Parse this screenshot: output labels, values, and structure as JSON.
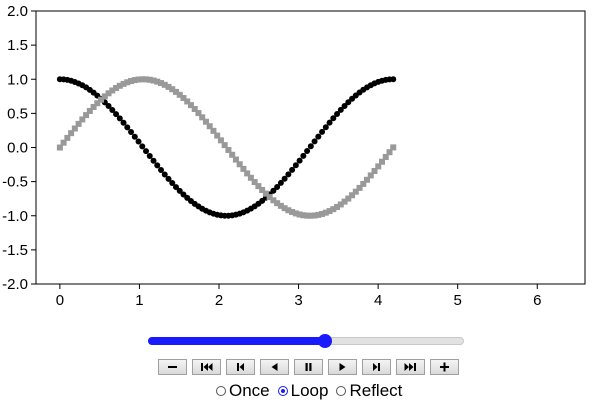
{
  "chart_data": {
    "type": "scatter",
    "xlim": [
      -0.3,
      6.6
    ],
    "ylim": [
      -2.0,
      2.0
    ],
    "x_ticks": [
      "0",
      "1",
      "2",
      "3",
      "4",
      "5",
      "6"
    ],
    "y_ticks": [
      "2.0",
      "1.5",
      "1.0",
      "0.5",
      "0.0",
      "-0.5",
      "-1.0",
      "-1.5",
      "-2.0"
    ],
    "x_tick_values": [
      0,
      1,
      2,
      3,
      4,
      5,
      6
    ],
    "y_tick_values": [
      2.0,
      1.5,
      1.0,
      0.5,
      0.0,
      -0.5,
      -1.0,
      -1.5,
      -2.0
    ],
    "grid": false,
    "series": [
      {
        "function": "cos(1.5x)",
        "x_start": 0,
        "x_end": 4.19,
        "points": 90,
        "marker": "circle",
        "color": "#000000"
      },
      {
        "function": "sin(1.5x)",
        "x_start": 0,
        "x_end": 4.19,
        "points": 90,
        "marker": "square",
        "color": "#999999"
      }
    ]
  },
  "animation": {
    "progress": 0.56,
    "accent_color": "#1a1aff",
    "buttons": [
      {
        "name": "slower-button",
        "icon": "minus-icon"
      },
      {
        "name": "first-frame-button",
        "icon": "skip-first-icon"
      },
      {
        "name": "previous-frame-button",
        "icon": "step-back-icon"
      },
      {
        "name": "play-reverse-button",
        "icon": "play-reverse-icon"
      },
      {
        "name": "pause-button",
        "icon": "pause-icon"
      },
      {
        "name": "play-button",
        "icon": "play-icon"
      },
      {
        "name": "next-frame-button",
        "icon": "step-forward-icon"
      },
      {
        "name": "last-frame-button",
        "icon": "skip-last-icon"
      },
      {
        "name": "faster-button",
        "icon": "plus-icon"
      }
    ],
    "modes": [
      {
        "label": "Once",
        "checked": false
      },
      {
        "label": "Loop",
        "checked": true
      },
      {
        "label": "Reflect",
        "checked": false
      }
    ]
  }
}
